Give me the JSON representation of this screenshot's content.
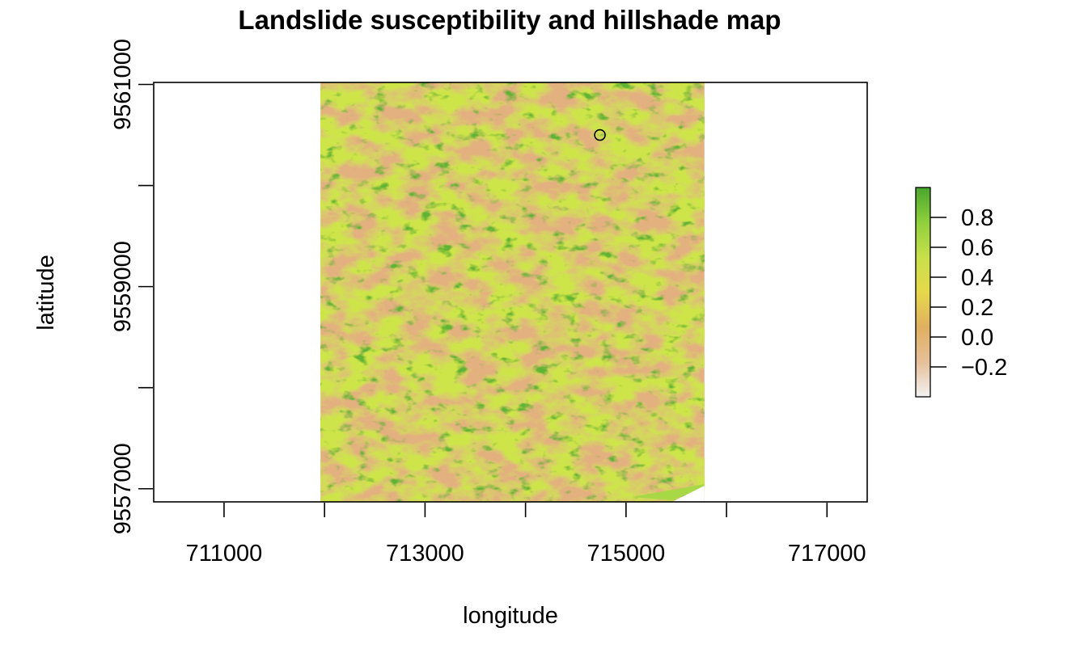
{
  "chart_data": {
    "type": "heatmap",
    "title": "Landslide susceptibility and hillshade map",
    "xlabel": "longitude",
    "ylabel": "latitude",
    "xlim": [
      710300,
      717400
    ],
    "ylim": [
      9556870,
      9561020
    ],
    "x_ticks": [
      {
        "value": 711000,
        "label": "711000"
      },
      {
        "value": 712000,
        "label": ""
      },
      {
        "value": 713000,
        "label": "713000"
      },
      {
        "value": 714000,
        "label": ""
      },
      {
        "value": 715000,
        "label": "715000"
      },
      {
        "value": 716000,
        "label": ""
      },
      {
        "value": 717000,
        "label": "717000"
      }
    ],
    "y_ticks": [
      {
        "value": 9557000,
        "label": "9557000"
      },
      {
        "value": 9558000,
        "label": ""
      },
      {
        "value": 9559000,
        "label": "9559000"
      },
      {
        "value": 9560000,
        "label": ""
      },
      {
        "value": 9561000,
        "label": "9561000"
      }
    ],
    "raster_extent": {
      "xmin": 711960,
      "xmax": 715780,
      "ymin": 9556870,
      "ymax": 9561020
    },
    "marker": {
      "x": 714740,
      "y": 9560500,
      "shape": "open-circle"
    },
    "legend": {
      "position": "right",
      "range": [
        -0.4,
        1.0
      ],
      "ticks": [
        {
          "value": 0.8,
          "label": "0.8"
        },
        {
          "value": 0.6,
          "label": "0.6"
        },
        {
          "value": 0.4,
          "label": "0.4"
        },
        {
          "value": 0.2,
          "label": "0.2"
        },
        {
          "value": 0.0,
          "label": "0.0"
        },
        {
          "value": -0.2,
          "label": "−0.2"
        }
      ],
      "colors": [
        "#f2f2f2",
        "#e6bf99",
        "#e0b060",
        "#e6d84a",
        "#c8e04a",
        "#8fd03c",
        "#4aa52e"
      ]
    },
    "grid": false
  }
}
